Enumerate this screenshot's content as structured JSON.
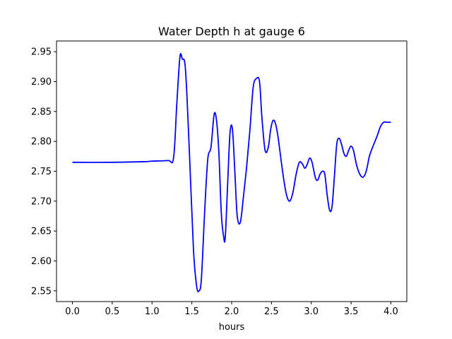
{
  "chart_data": {
    "type": "line",
    "title": "Water Depth h at gauge 6",
    "xlabel": "hours",
    "ylabel": "",
    "xlim": [
      -0.2,
      4.2
    ],
    "ylim": [
      2.532,
      2.968
    ],
    "xticks": [
      "0.0",
      "0.5",
      "1.0",
      "1.5",
      "2.0",
      "2.5",
      "3.0",
      "3.5",
      "4.0"
    ],
    "yticks": [
      "2.55",
      "2.60",
      "2.65",
      "2.70",
      "2.75",
      "2.80",
      "2.85",
      "2.90",
      "2.95"
    ],
    "grid": false,
    "series": [
      {
        "color": "#0000ff",
        "x": [
          0.0,
          0.5,
          0.9,
          1.0,
          1.2,
          1.27,
          1.31,
          1.35,
          1.38,
          1.42,
          1.47,
          1.52,
          1.56,
          1.59,
          1.62,
          1.66,
          1.7,
          1.74,
          1.78,
          1.81,
          1.84,
          1.87,
          1.9,
          1.92,
          1.95,
          1.98,
          2.01,
          2.04,
          2.07,
          2.11,
          2.15,
          2.19,
          2.23,
          2.27,
          2.31,
          2.35,
          2.38,
          2.42,
          2.46,
          2.49,
          2.52,
          2.55,
          2.58,
          2.61,
          2.65,
          2.69,
          2.73,
          2.77,
          2.81,
          2.85,
          2.89,
          2.92,
          2.95,
          2.98,
          3.01,
          3.05,
          3.08,
          3.11,
          3.14,
          3.17,
          3.2,
          3.23,
          3.26,
          3.29,
          3.32,
          3.35,
          3.38,
          3.41,
          3.44,
          3.47,
          3.5,
          3.53,
          3.57,
          3.61,
          3.65,
          3.69,
          3.73,
          3.77,
          3.8,
          3.83,
          3.87,
          3.91,
          3.95,
          3.98,
          4.0
        ],
        "y": [
          2.765,
          2.765,
          2.766,
          2.767,
          2.768,
          2.772,
          2.86,
          2.941,
          2.938,
          2.92,
          2.78,
          2.62,
          2.558,
          2.55,
          2.57,
          2.68,
          2.77,
          2.79,
          2.845,
          2.835,
          2.78,
          2.68,
          2.64,
          2.64,
          2.73,
          2.815,
          2.82,
          2.75,
          2.675,
          2.665,
          2.71,
          2.76,
          2.82,
          2.89,
          2.905,
          2.9,
          2.84,
          2.785,
          2.79,
          2.82,
          2.835,
          2.83,
          2.81,
          2.78,
          2.74,
          2.71,
          2.7,
          2.715,
          2.745,
          2.765,
          2.762,
          2.755,
          2.762,
          2.772,
          2.765,
          2.74,
          2.735,
          2.745,
          2.75,
          2.745,
          2.71,
          2.685,
          2.69,
          2.74,
          2.795,
          2.805,
          2.795,
          2.78,
          2.775,
          2.785,
          2.792,
          2.785,
          2.76,
          2.745,
          2.74,
          2.75,
          2.775,
          2.79,
          2.8,
          2.81,
          2.825,
          2.832,
          2.832,
          2.832,
          2.832
        ]
      }
    ]
  }
}
